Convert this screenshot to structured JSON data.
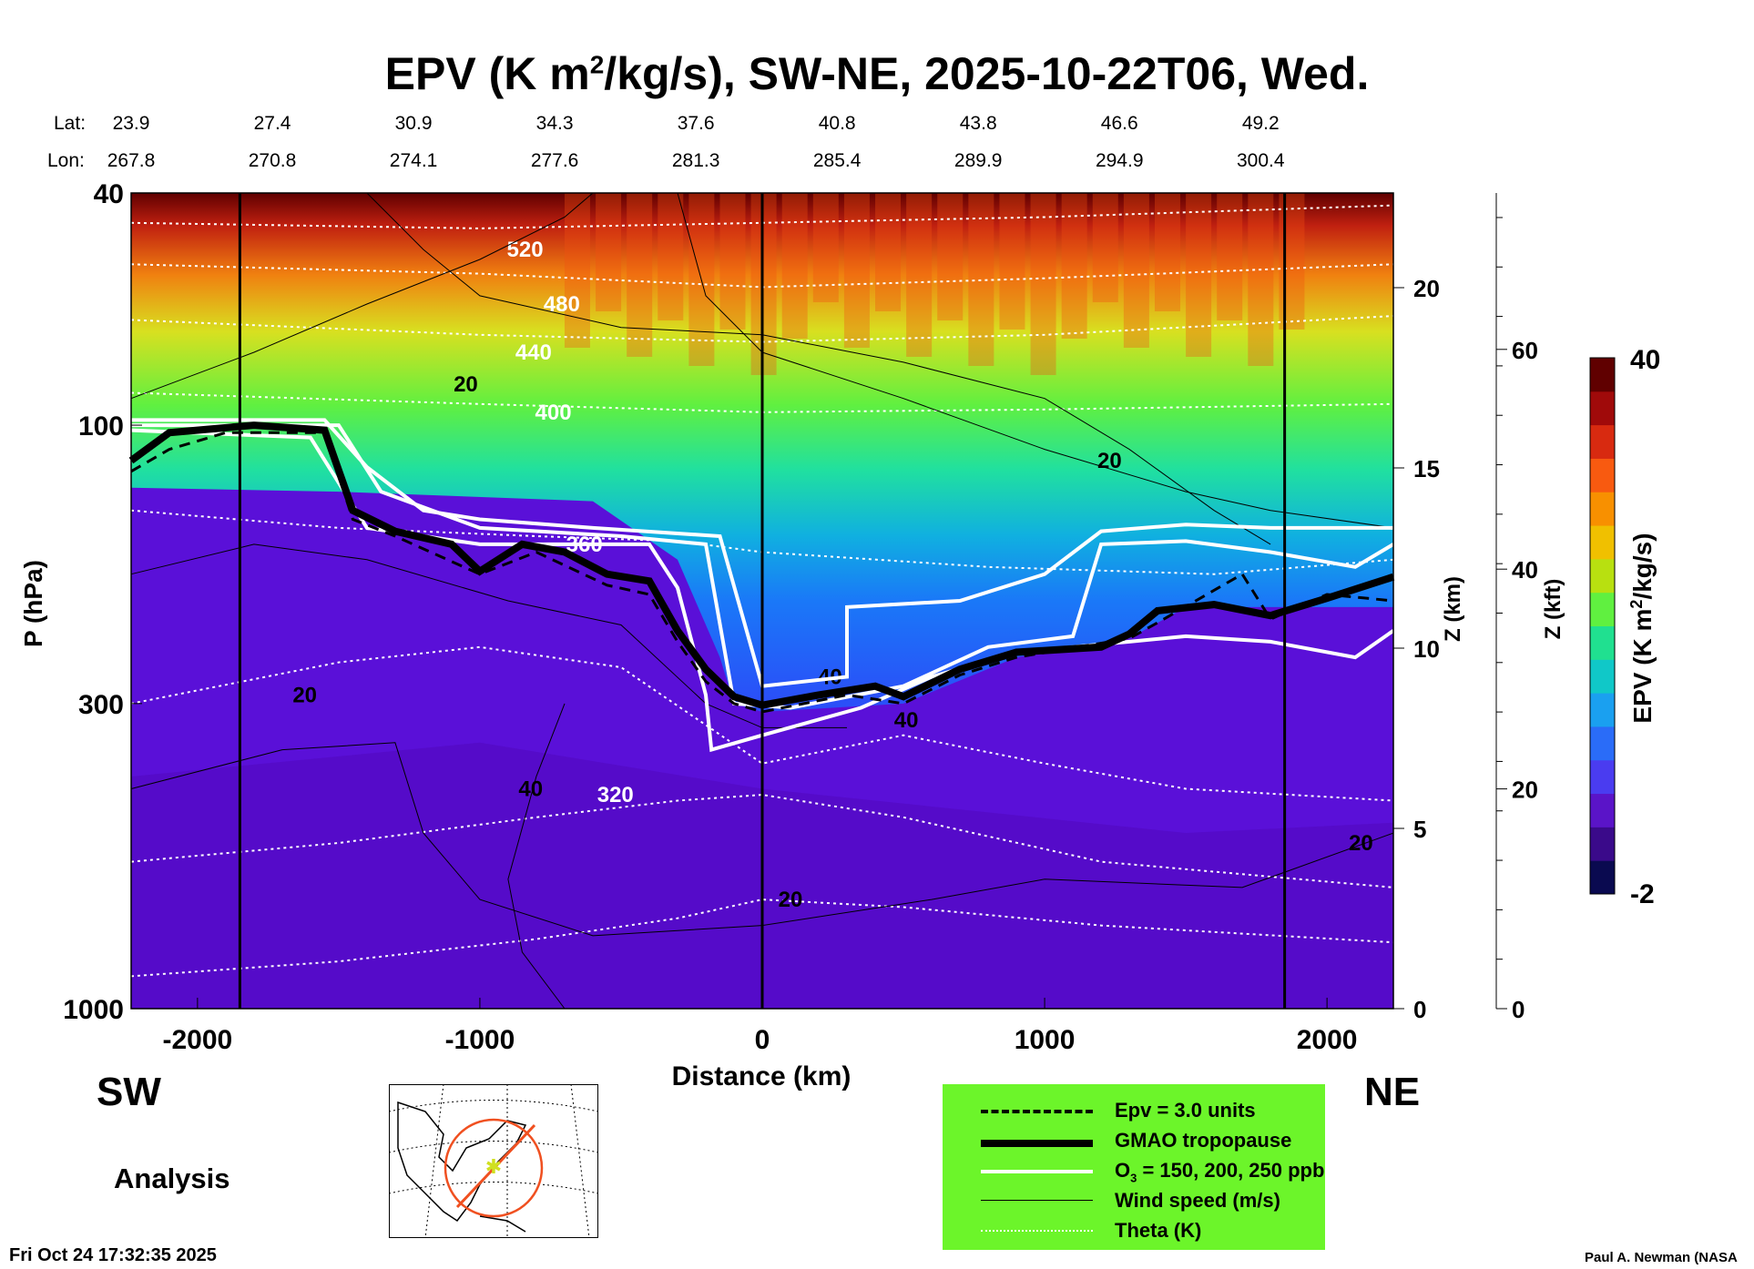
{
  "chart_data": {
    "type": "heatmap",
    "title": "EPV (K m²/kg/s), SW-NE, 2025-10-22T06, Wed.",
    "title_parts": {
      "pre": "EPV (K m",
      "sup": "2",
      "post": "/kg/s), SW-NE, 2025-10-22T06, Wed."
    },
    "lat_label": "Lat:",
    "lon_label": "Lon:",
    "lat": [
      "23.9",
      "27.4",
      "30.9",
      "34.3",
      "37.6",
      "40.8",
      "43.8",
      "46.6",
      "49.2"
    ],
    "lon": [
      "267.8",
      "270.8",
      "274.1",
      "277.6",
      "281.3",
      "285.4",
      "289.9",
      "294.9",
      "300.4"
    ],
    "lat_lon_distance_km": [
      -2235,
      -1735,
      -1235,
      -735,
      -235,
      265,
      765,
      1265,
      1765
    ],
    "xlabel": "Distance (km)",
    "ylabel": "P (hPa)",
    "xlim": [
      -2235,
      2235
    ],
    "ylim": [
      1000,
      40
    ],
    "x_ticks": [
      -2000,
      -1000,
      0,
      1000,
      2000
    ],
    "x_tick_labels": [
      "-2000",
      "-1000",
      "0",
      "1000",
      "2000"
    ],
    "y_ticks": [
      40,
      100,
      300,
      1000
    ],
    "y_tick_labels": [
      "40",
      "100",
      "300",
      "1000"
    ],
    "z_km": {
      "label": "Z (km)",
      "ticks": [
        0,
        5,
        10,
        15,
        20
      ],
      "tick_labels": [
        "0",
        "5",
        "10",
        "15",
        "20"
      ]
    },
    "z_kft": {
      "label": "Z (kft)",
      "ticks": [
        0,
        20,
        40,
        60
      ],
      "tick_labels": [
        "0",
        "20",
        "40",
        "60"
      ]
    },
    "colorbar": {
      "label_pre": "EPV (K m",
      "label_sup": "2",
      "label_post": "/kg/s)",
      "min": -2,
      "max": 40,
      "min_label": "-2",
      "max_label": "40",
      "colors": [
        "#0a0a50",
        "#3a0a8a",
        "#5a14c8",
        "#4a3cf0",
        "#2a6cf8",
        "#1aa0f0",
        "#10c8c8",
        "#20e090",
        "#60f040",
        "#b8e010",
        "#f0c000",
        "#f89000",
        "#f85a10",
        "#d82a10",
        "#a00a0a",
        "#600000"
      ]
    },
    "vertical_lines_km": [
      -1850,
      0,
      1850
    ],
    "tropopause": [
      [
        -2235,
        115
      ],
      [
        -2100,
        103
      ],
      [
        -1800,
        100
      ],
      [
        -1550,
        102
      ],
      [
        -1450,
        140
      ],
      [
        -1300,
        152
      ],
      [
        -1100,
        160
      ],
      [
        -1000,
        178
      ],
      [
        -850,
        160
      ],
      [
        -700,
        165
      ],
      [
        -550,
        180
      ],
      [
        -400,
        185
      ],
      [
        -300,
        225
      ],
      [
        -200,
        262
      ],
      [
        -100,
        292
      ],
      [
        0,
        302
      ],
      [
        200,
        290
      ],
      [
        400,
        280
      ],
      [
        500,
        292
      ],
      [
        700,
        262
      ],
      [
        900,
        245
      ],
      [
        1200,
        240
      ],
      [
        1300,
        228
      ],
      [
        1400,
        208
      ],
      [
        1600,
        203
      ],
      [
        1800,
        212
      ],
      [
        2000,
        198
      ],
      [
        2235,
        182
      ]
    ],
    "epv3_line": [
      [
        -2235,
        120
      ],
      [
        -2100,
        110
      ],
      [
        -1900,
        103
      ],
      [
        -1550,
        103
      ],
      [
        -1450,
        145
      ],
      [
        -1300,
        155
      ],
      [
        -1000,
        180
      ],
      [
        -800,
        165
      ],
      [
        -550,
        188
      ],
      [
        -400,
        195
      ],
      [
        -300,
        235
      ],
      [
        -200,
        275
      ],
      [
        -100,
        300
      ],
      [
        0,
        310
      ],
      [
        300,
        290
      ],
      [
        500,
        300
      ],
      [
        700,
        268
      ],
      [
        900,
        250
      ],
      [
        1300,
        232
      ],
      [
        1400,
        218
      ],
      [
        1700,
        180
      ],
      [
        1800,
        215
      ],
      [
        2000,
        195
      ],
      [
        2235,
        200
      ]
    ],
    "o3_lines": [
      [
        [
          -2235,
          98
        ],
        [
          -1550,
          98
        ],
        [
          -1400,
          118
        ],
        [
          -1200,
          140
        ],
        [
          -1000,
          145
        ],
        [
          -600,
          150
        ],
        [
          -150,
          155
        ],
        [
          0,
          280
        ],
        [
          300,
          270
        ],
        [
          300,
          205
        ],
        [
          700,
          200
        ],
        [
          1000,
          180
        ],
        [
          1200,
          152
        ],
        [
          1500,
          148
        ],
        [
          1800,
          150
        ],
        [
          2000,
          150
        ],
        [
          2235,
          150
        ]
      ],
      [
        [
          -2235,
          100
        ],
        [
          -1500,
          100
        ],
        [
          -1350,
          130
        ],
        [
          -1000,
          150
        ],
        [
          -500,
          155
        ],
        [
          -200,
          160
        ],
        [
          -100,
          300
        ],
        [
          100,
          305
        ],
        [
          500,
          280
        ],
        [
          800,
          240
        ],
        [
          1100,
          230
        ],
        [
          1200,
          160
        ],
        [
          1500,
          158
        ],
        [
          1800,
          165
        ],
        [
          2100,
          175
        ],
        [
          2235,
          160
        ]
      ],
      [
        [
          -2235,
          102
        ],
        [
          -1600,
          105
        ],
        [
          -1400,
          150
        ],
        [
          -1000,
          160
        ],
        [
          -400,
          160
        ],
        [
          -300,
          190
        ],
        [
          -200,
          290
        ],
        [
          -180,
          360
        ],
        [
          0,
          340
        ],
        [
          350,
          305
        ],
        [
          600,
          270
        ],
        [
          900,
          245
        ],
        [
          1300,
          235
        ],
        [
          1500,
          230
        ],
        [
          1800,
          235
        ],
        [
          2100,
          250
        ],
        [
          2235,
          225
        ]
      ]
    ],
    "theta_lines": [
      {
        "value": "520",
        "label_at": [
          -840,
          50
        ],
        "points": [
          [
            -2235,
            45
          ],
          [
            -1000,
            46
          ],
          [
            0,
            45
          ],
          [
            1000,
            44
          ],
          [
            2235,
            42
          ]
        ]
      },
      {
        "value": "480",
        "label_at": [
          -710,
          62
        ],
        "points": [
          [
            -2235,
            53
          ],
          [
            -1000,
            55
          ],
          [
            0,
            58
          ],
          [
            1000,
            56
          ],
          [
            2235,
            53
          ]
        ]
      },
      {
        "value": "440",
        "label_at": [
          -810,
          75
        ],
        "points": [
          [
            -2235,
            66
          ],
          [
            -1000,
            70
          ],
          [
            0,
            72
          ],
          [
            1000,
            70
          ],
          [
            2235,
            65
          ]
        ]
      },
      {
        "value": "400",
        "label_at": [
          -740,
          95
        ],
        "points": [
          [
            -2235,
            88
          ],
          [
            -1000,
            92
          ],
          [
            0,
            95
          ],
          [
            1000,
            94
          ],
          [
            2235,
            92
          ]
        ]
      },
      {
        "value": "360",
        "label_at": [
          -630,
          160
        ],
        "points": [
          [
            -2235,
            140
          ],
          [
            -1500,
            150
          ],
          [
            -800,
            155
          ],
          [
            -300,
            158
          ],
          [
            0,
            165
          ],
          [
            800,
            175
          ],
          [
            1600,
            180
          ],
          [
            2235,
            170
          ]
        ]
      },
      {
        "value": "320",
        "label_at": [
          -520,
          430
        ],
        "points": [
          [
            -2235,
            300
          ],
          [
            -1500,
            255
          ],
          [
            -1000,
            240
          ],
          [
            -500,
            260
          ],
          [
            0,
            380
          ],
          [
            500,
            340
          ],
          [
            1000,
            380
          ],
          [
            1500,
            420
          ],
          [
            2235,
            440
          ]
        ]
      },
      {
        "value": "",
        "label_at": null,
        "points": [
          [
            -2235,
            560
          ],
          [
            -1500,
            520
          ],
          [
            -800,
            470
          ],
          [
            -300,
            440
          ],
          [
            0,
            430
          ],
          [
            500,
            470
          ],
          [
            1200,
            560
          ],
          [
            2235,
            620
          ]
        ]
      },
      {
        "value": "",
        "label_at": null,
        "points": [
          [
            -2235,
            880
          ],
          [
            -1500,
            830
          ],
          [
            -800,
            760
          ],
          [
            -300,
            700
          ],
          [
            0,
            650
          ],
          [
            500,
            670
          ],
          [
            1200,
            720
          ],
          [
            2235,
            770
          ]
        ]
      }
    ],
    "wind_labels": [
      {
        "text": "20",
        "at": [
          -1050,
          85
        ]
      },
      {
        "text": "20",
        "at": [
          1230,
          115
        ]
      },
      {
        "text": "20",
        "at": [
          -1620,
          290
        ]
      },
      {
        "text": "40",
        "at": [
          -820,
          420
        ]
      },
      {
        "text": "40",
        "at": [
          240,
          270
        ]
      },
      {
        "text": "40",
        "at": [
          510,
          320
        ]
      },
      {
        "text": "20",
        "at": [
          100,
          650
        ]
      },
      {
        "text": "20",
        "at": [
          2120,
          520
        ]
      }
    ],
    "wind_contours": [
      [
        [
          -2235,
          90
        ],
        [
          -1800,
          75
        ],
        [
          -1400,
          62
        ],
        [
          -1000,
          52
        ],
        [
          -700,
          44
        ],
        [
          -600,
          40
        ]
      ],
      [
        [
          -1400,
          40
        ],
        [
          -1200,
          50
        ],
        [
          -1000,
          60
        ],
        [
          -500,
          68
        ],
        [
          0,
          70
        ],
        [
          500,
          78
        ],
        [
          1000,
          90
        ],
        [
          1300,
          110
        ],
        [
          1600,
          140
        ],
        [
          1800,
          160
        ]
      ],
      [
        [
          -2235,
          180
        ],
        [
          -1800,
          160
        ],
        [
          -1400,
          170
        ],
        [
          -900,
          200
        ],
        [
          -500,
          220
        ],
        [
          -200,
          300
        ],
        [
          0,
          330
        ],
        [
          300,
          330
        ]
      ],
      [
        [
          -700,
          300
        ],
        [
          -800,
          400
        ],
        [
          -900,
          600
        ],
        [
          -850,
          800
        ],
        [
          -700,
          1000
        ]
      ],
      [
        [
          -2235,
          420
        ],
        [
          -1700,
          360
        ],
        [
          -1300,
          350
        ],
        [
          -1200,
          500
        ],
        [
          -1000,
          650
        ],
        [
          -600,
          750
        ],
        [
          0,
          720
        ],
        [
          600,
          650
        ],
        [
          1000,
          600
        ],
        [
          1700,
          620
        ],
        [
          2235,
          500
        ]
      ],
      [
        [
          -300,
          40
        ],
        [
          -200,
          60
        ],
        [
          0,
          75
        ],
        [
          500,
          90
        ],
        [
          1000,
          110
        ],
        [
          1500,
          130
        ],
        [
          1800,
          140
        ],
        [
          2235,
          150
        ]
      ]
    ]
  },
  "labels": {
    "sw": "SW",
    "ne": "NE",
    "analysis": "Analysis",
    "timestamp": "Fri Oct 24 17:32:35 2025",
    "credit": "Paul A. Newman (NASA"
  },
  "legend": {
    "items": [
      {
        "label": "Epv = 3.0 units",
        "style": "dashed"
      },
      {
        "label": "GMAO tropopause",
        "style": "thick"
      },
      {
        "label_pre": "O",
        "label_sub": "3",
        "label_post": " = 150, 200, 250 ppb",
        "style": "white"
      },
      {
        "label": "Wind speed (m/s)",
        "style": "thin"
      },
      {
        "label": "Theta (K)",
        "style": "dotted"
      }
    ],
    "background": "#6cf52a"
  }
}
